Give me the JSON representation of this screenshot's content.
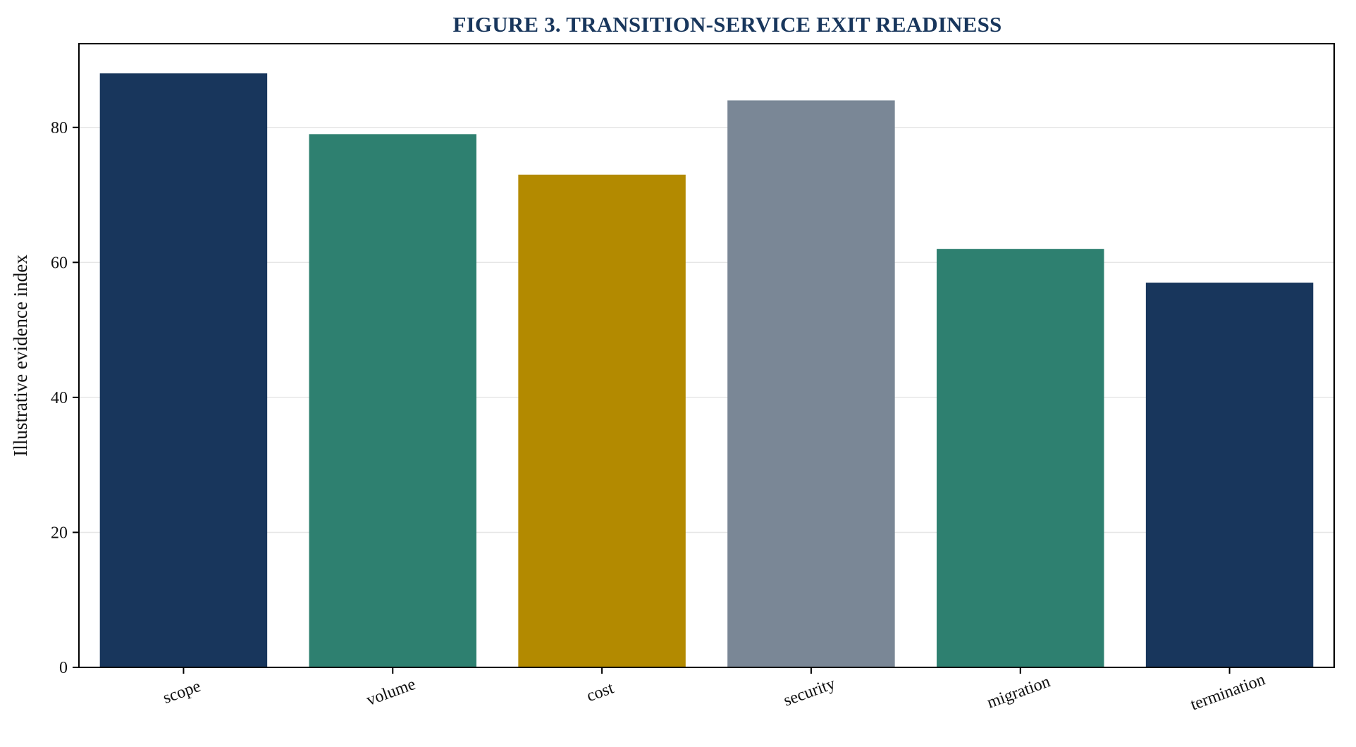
{
  "chart_data": {
    "type": "bar",
    "title": "FIGURE 3. TRANSITION-SERVICE EXIT READINESS",
    "xlabel": "",
    "ylabel": "Illustrative evidence index",
    "categories": [
      "scope",
      "volume",
      "cost",
      "security",
      "migration",
      "termination"
    ],
    "values": [
      88,
      79,
      73,
      84,
      62,
      57
    ],
    "bar_colors": [
      "#18365c",
      "#2e8070",
      "#b38a00",
      "#7a8796",
      "#2e8070",
      "#18365c"
    ],
    "ylim": [
      0,
      92.4
    ],
    "yticks": [
      0,
      20,
      40,
      60,
      80
    ],
    "grid": true,
    "legend": "none",
    "title_color": "#18365c",
    "xtick_rotation_deg": -20
  }
}
